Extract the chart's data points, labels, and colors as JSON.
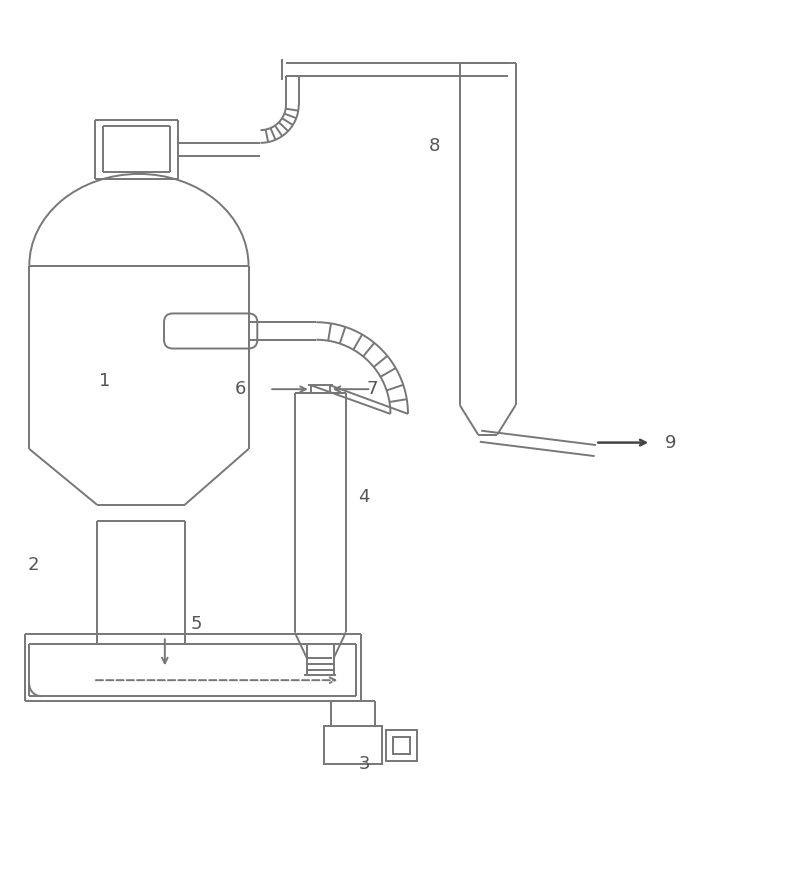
{
  "fig_width": 8.0,
  "fig_height": 8.82,
  "dpi": 100,
  "bg_color": "#ffffff",
  "line_color": "#777777",
  "lw": 1.4,
  "label_fontsize": 13,
  "label_color": "#555555"
}
